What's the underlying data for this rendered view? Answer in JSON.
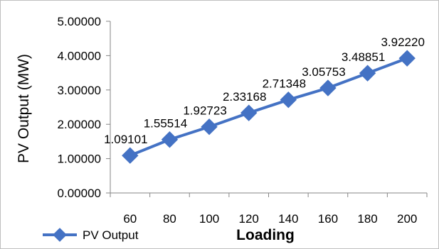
{
  "chart_data": {
    "type": "line",
    "title": "",
    "xlabel": "Loading",
    "ylabel": "PV Output (MW)",
    "categories": [
      "60",
      "80",
      "100",
      "120",
      "140",
      "160",
      "180",
      "200"
    ],
    "series": [
      {
        "name": "PV Output",
        "color": "#4472C4",
        "values": [
          1.09101,
          1.55514,
          1.92723,
          2.33168,
          2.71348,
          3.05753,
          3.48851,
          3.9222
        ],
        "labels": [
          "1.09101",
          "1.55514",
          "1.92723",
          "2.33168",
          "2.71348",
          "3.05753",
          "3.48851",
          "3.92220"
        ]
      }
    ],
    "ylim": [
      0,
      5
    ],
    "y_ticks": [
      0,
      1,
      2,
      3,
      4,
      5
    ],
    "y_tick_labels": [
      "0.00000",
      "1.00000",
      "2.00000",
      "3.00000",
      "4.00000",
      "5.00000"
    ],
    "marker": "diamond",
    "grid": false,
    "legend": "bottom-left"
  }
}
